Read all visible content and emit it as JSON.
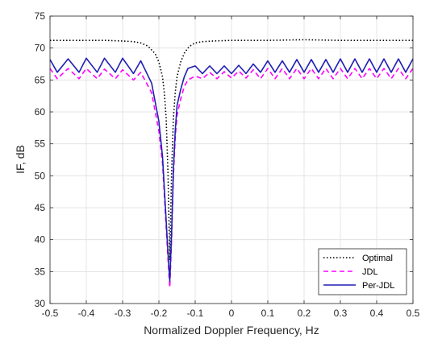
{
  "chart_data": {
    "type": "line",
    "title": "",
    "xlabel": "Normalized Doppler Frequency, Hz",
    "ylabel": "IF, dB",
    "xlim": [
      -0.5,
      0.5
    ],
    "ylim": [
      30,
      75
    ],
    "xticks": [
      -0.5,
      -0.4,
      -0.3,
      -0.2,
      -0.1,
      0,
      0.1,
      0.2,
      0.3,
      0.4,
      0.5
    ],
    "xtick_labels": [
      "-0.5",
      "-0.4",
      "-0.3",
      "-0.2",
      "-0.1",
      "0",
      "0.1",
      "0.2",
      "0.3",
      "0.4",
      "0.5"
    ],
    "yticks": [
      30,
      35,
      40,
      45,
      50,
      55,
      60,
      65,
      70,
      75
    ],
    "ytick_labels": [
      "30",
      "35",
      "40",
      "45",
      "50",
      "55",
      "60",
      "65",
      "70",
      "75"
    ],
    "grid": true,
    "legend_position": "bottom-right",
    "series": [
      {
        "name": "Optimal",
        "color": "#000000",
        "style": "dotted",
        "x": [
          -0.5,
          -0.45,
          -0.4,
          -0.35,
          -0.3,
          -0.27,
          -0.25,
          -0.23,
          -0.21,
          -0.2,
          -0.19,
          -0.185,
          -0.18,
          -0.175,
          -0.17,
          -0.165,
          -0.16,
          -0.155,
          -0.15,
          -0.14,
          -0.13,
          -0.12,
          -0.11,
          -0.1,
          -0.08,
          -0.05,
          0,
          0.1,
          0.2,
          0.3,
          0.4,
          0.5
        ],
        "y": [
          71.2,
          71.2,
          71.2,
          71.2,
          71.1,
          71.0,
          70.8,
          70.3,
          69.1,
          67.8,
          65.5,
          63.0,
          59.0,
          50.5,
          36.8,
          50.5,
          59.0,
          63.0,
          65.5,
          67.8,
          69.2,
          70.0,
          70.5,
          70.8,
          71.0,
          71.1,
          71.2,
          71.2,
          71.3,
          71.2,
          71.2,
          71.2
        ]
      },
      {
        "name": "JDL",
        "color": "#ff00ff",
        "style": "dashed",
        "x": [
          -0.5,
          -0.48,
          -0.45,
          -0.42,
          -0.4,
          -0.37,
          -0.35,
          -0.32,
          -0.3,
          -0.27,
          -0.25,
          -0.22,
          -0.2,
          -0.19,
          -0.185,
          -0.18,
          -0.175,
          -0.17,
          -0.165,
          -0.16,
          -0.155,
          -0.15,
          -0.14,
          -0.13,
          -0.12,
          -0.1,
          -0.08,
          -0.06,
          -0.04,
          -0.02,
          0,
          0.02,
          0.04,
          0.06,
          0.08,
          0.1,
          0.12,
          0.14,
          0.16,
          0.18,
          0.2,
          0.22,
          0.24,
          0.26,
          0.28,
          0.3,
          0.32,
          0.34,
          0.36,
          0.38,
          0.4,
          0.42,
          0.44,
          0.46,
          0.48,
          0.5
        ],
        "y": [
          66.8,
          65.2,
          66.8,
          65.2,
          66.8,
          65.2,
          66.7,
          65.2,
          66.6,
          65.0,
          66.2,
          63.0,
          57.0,
          52.0,
          47.0,
          42.0,
          37.0,
          32.5,
          40.0,
          50.0,
          56.0,
          59.5,
          62.0,
          64.0,
          65.0,
          65.6,
          65.2,
          66.2,
          65.2,
          66.3,
          65.3,
          66.4,
          65.3,
          66.6,
          65.2,
          66.8,
          65.2,
          66.8,
          65.2,
          66.8,
          65.2,
          66.8,
          65.2,
          66.8,
          65.2,
          66.8,
          65.2,
          66.8,
          65.2,
          66.8,
          65.2,
          66.8,
          65.2,
          66.8,
          65.2,
          66.8
        ]
      },
      {
        "name": "Per-JDL",
        "color": "#1f1fb4",
        "style": "solid",
        "x": [
          -0.5,
          -0.48,
          -0.45,
          -0.42,
          -0.4,
          -0.37,
          -0.35,
          -0.32,
          -0.3,
          -0.27,
          -0.25,
          -0.22,
          -0.2,
          -0.19,
          -0.185,
          -0.18,
          -0.175,
          -0.17,
          -0.165,
          -0.16,
          -0.155,
          -0.15,
          -0.14,
          -0.13,
          -0.12,
          -0.1,
          -0.08,
          -0.06,
          -0.04,
          -0.02,
          0,
          0.02,
          0.04,
          0.06,
          0.08,
          0.1,
          0.12,
          0.14,
          0.16,
          0.18,
          0.2,
          0.22,
          0.24,
          0.26,
          0.28,
          0.3,
          0.32,
          0.34,
          0.36,
          0.38,
          0.4,
          0.42,
          0.44,
          0.46,
          0.48,
          0.5
        ],
        "y": [
          68.2,
          66.2,
          68.3,
          66.2,
          68.4,
          66.2,
          68.4,
          66.2,
          68.4,
          66.0,
          68.0,
          64.5,
          58.5,
          53.0,
          48.0,
          43.0,
          38.0,
          33.5,
          41.0,
          51.0,
          57.0,
          61.0,
          63.5,
          65.5,
          66.8,
          67.2,
          66.0,
          67.2,
          66.0,
          67.2,
          66.0,
          67.3,
          66.0,
          67.5,
          66.2,
          68.0,
          66.2,
          68.0,
          66.2,
          68.2,
          66.2,
          68.2,
          66.2,
          68.2,
          66.2,
          68.3,
          66.2,
          68.3,
          66.2,
          68.3,
          66.2,
          68.3,
          66.2,
          68.3,
          66.2,
          68.3
        ]
      }
    ]
  }
}
